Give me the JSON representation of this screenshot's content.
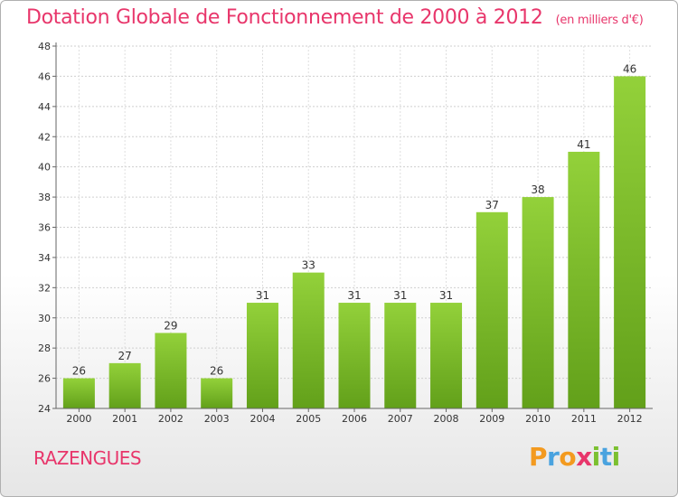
{
  "chart_data": {
    "type": "bar",
    "title": "Dotation Globale de Fonctionnement de 2000 à 2012",
    "subtitle": "(en milliers d'€)",
    "categories": [
      "2000",
      "2001",
      "2002",
      "2003",
      "2004",
      "2005",
      "2006",
      "2007",
      "2008",
      "2009",
      "2010",
      "2011",
      "2012"
    ],
    "values": [
      26,
      27,
      29,
      26,
      31,
      33,
      31,
      31,
      31,
      37,
      38,
      41,
      46
    ],
    "ylim": [
      24,
      48
    ],
    "yticks": [
      24,
      26,
      28,
      30,
      32,
      34,
      36,
      38,
      40,
      42,
      44,
      46,
      48
    ],
    "grid": true,
    "bar_color": "#7cc030"
  },
  "commune": "RAZENGUES",
  "logo": {
    "letters": [
      "P",
      "r",
      "o",
      "x",
      "i",
      "t",
      "i"
    ],
    "colors": [
      "#f39a1f",
      "#4aa3df",
      "#f39a1f",
      "#e8366b",
      "#7cc030",
      "#4aa3df",
      "#7cc030"
    ]
  }
}
